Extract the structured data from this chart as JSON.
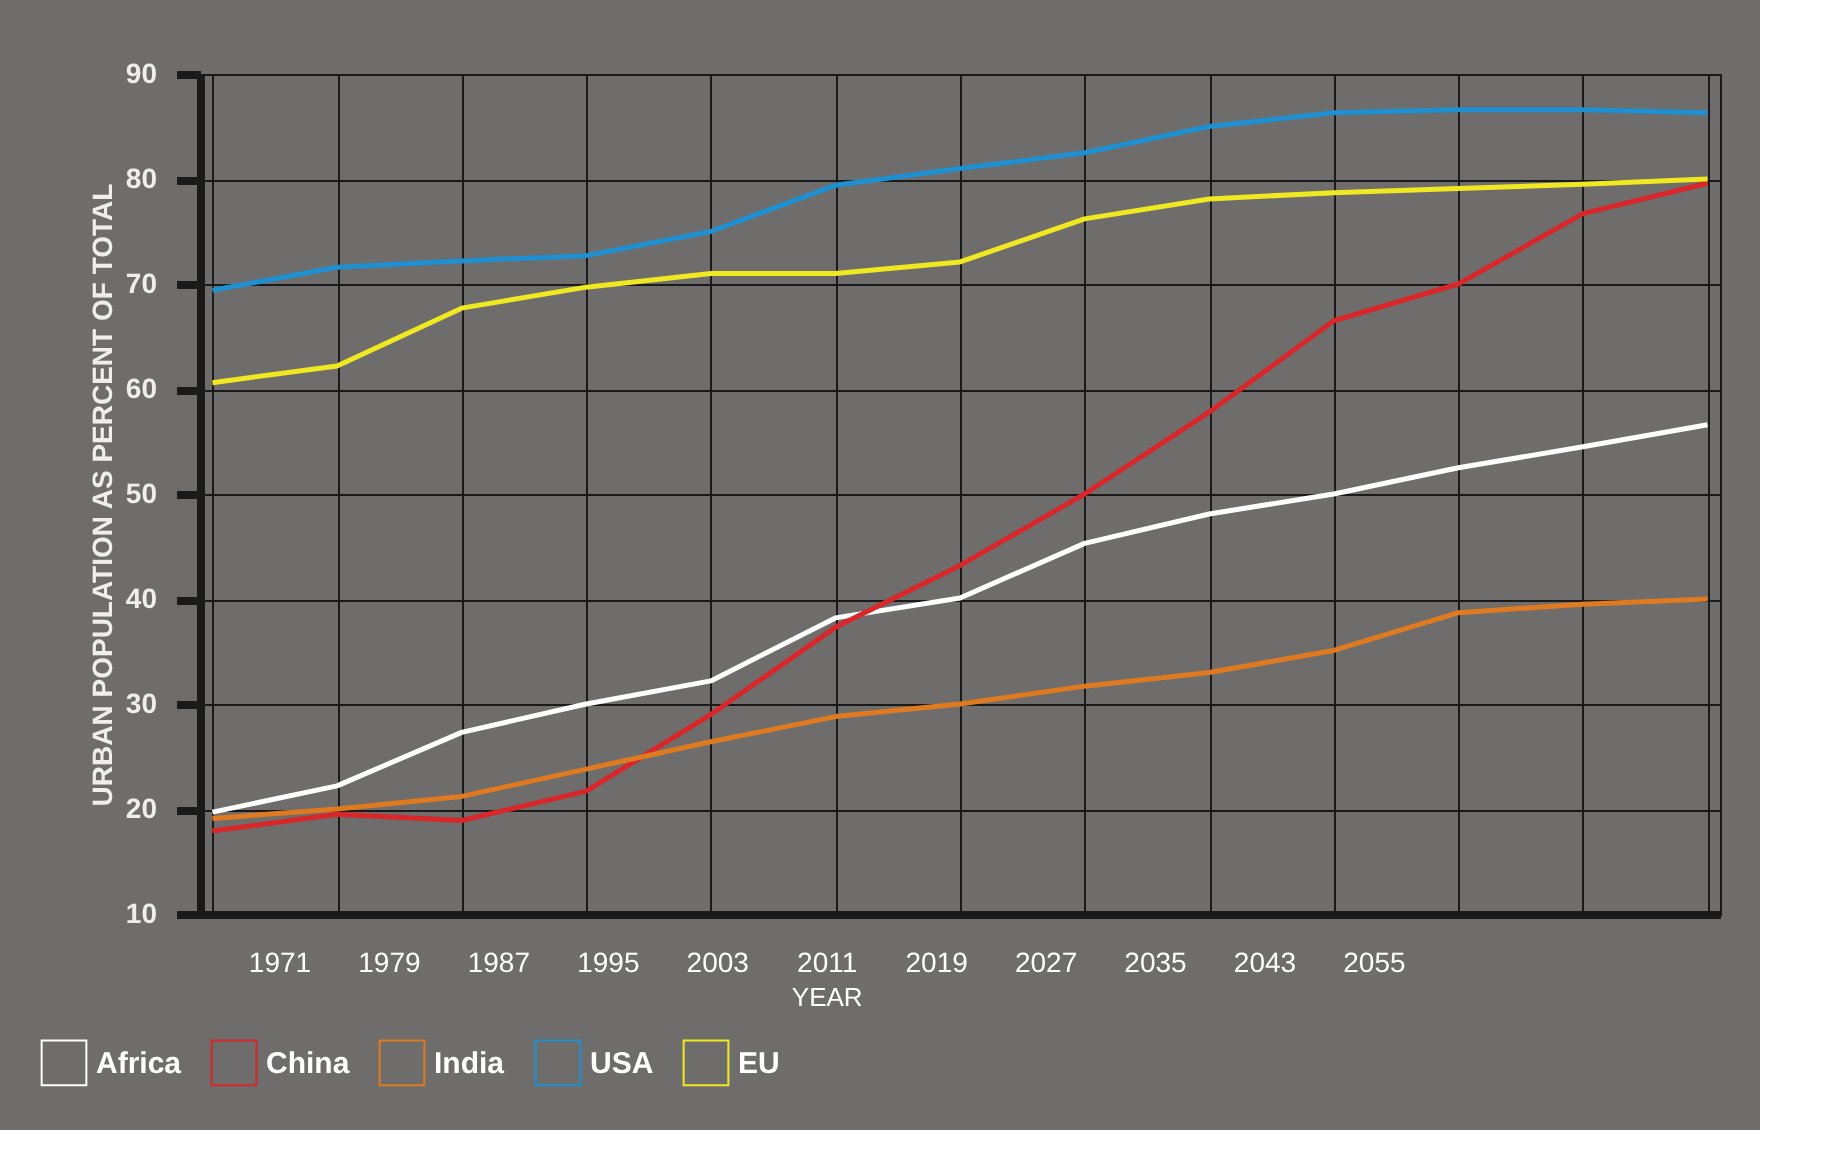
{
  "chart_data": {
    "type": "line",
    "xlabel": "YEAR",
    "ylabel": "URBAN POPULATION AS PERCENT OF TOTAL",
    "categories": [
      null,
      null,
      null,
      null,
      null,
      null,
      null,
      null,
      null,
      null,
      null,
      null,
      null
    ],
    "series": [
      {
        "name": "Africa",
        "color": "#ffffff",
        "values": [
          19.7,
          22.2,
          27.3,
          30,
          32.2,
          38.2,
          40.1,
          45.3,
          48.1,
          50,
          52.5,
          54.5,
          56.6
        ]
      },
      {
        "name": "China",
        "color": "#d9262a",
        "values": [
          17.9,
          19.5,
          18.9,
          21.7,
          29,
          37.3,
          43.2,
          50,
          57.8,
          66.5,
          70,
          76.7,
          79.6
        ]
      },
      {
        "name": "India",
        "color": "#e07a20",
        "values": [
          19.1,
          20,
          21.2,
          23.8,
          26.4,
          28.8,
          30,
          31.7,
          33,
          35.1,
          38.7,
          39.5,
          40
        ]
      },
      {
        "name": "USA",
        "color": "#1e90d2",
        "values": [
          69.4,
          71.6,
          72.2,
          72.7,
          75,
          79.4,
          81,
          82.5,
          85,
          86.3,
          86.6,
          86.6,
          86.3
        ]
      },
      {
        "name": "EU",
        "color": "#f0e820",
        "values": [
          60.6,
          62.2,
          67.7,
          69.7,
          71,
          71,
          72.1,
          76.2,
          78.1,
          78.7,
          79.1,
          79.5,
          80
        ]
      }
    ],
    "annotations": [
      "1971",
      "1979",
      "1987",
      "1995",
      "2003",
      "2011",
      "2019",
      "2027",
      "2035",
      "2043",
      "2055"
    ],
    "ylim": [
      10,
      90
    ],
    "yticks": [
      10,
      20,
      30,
      40,
      50,
      60,
      70,
      80,
      90
    ],
    "grid": true,
    "legend": "bottom left",
    "tick_labels": "y"
  }
}
